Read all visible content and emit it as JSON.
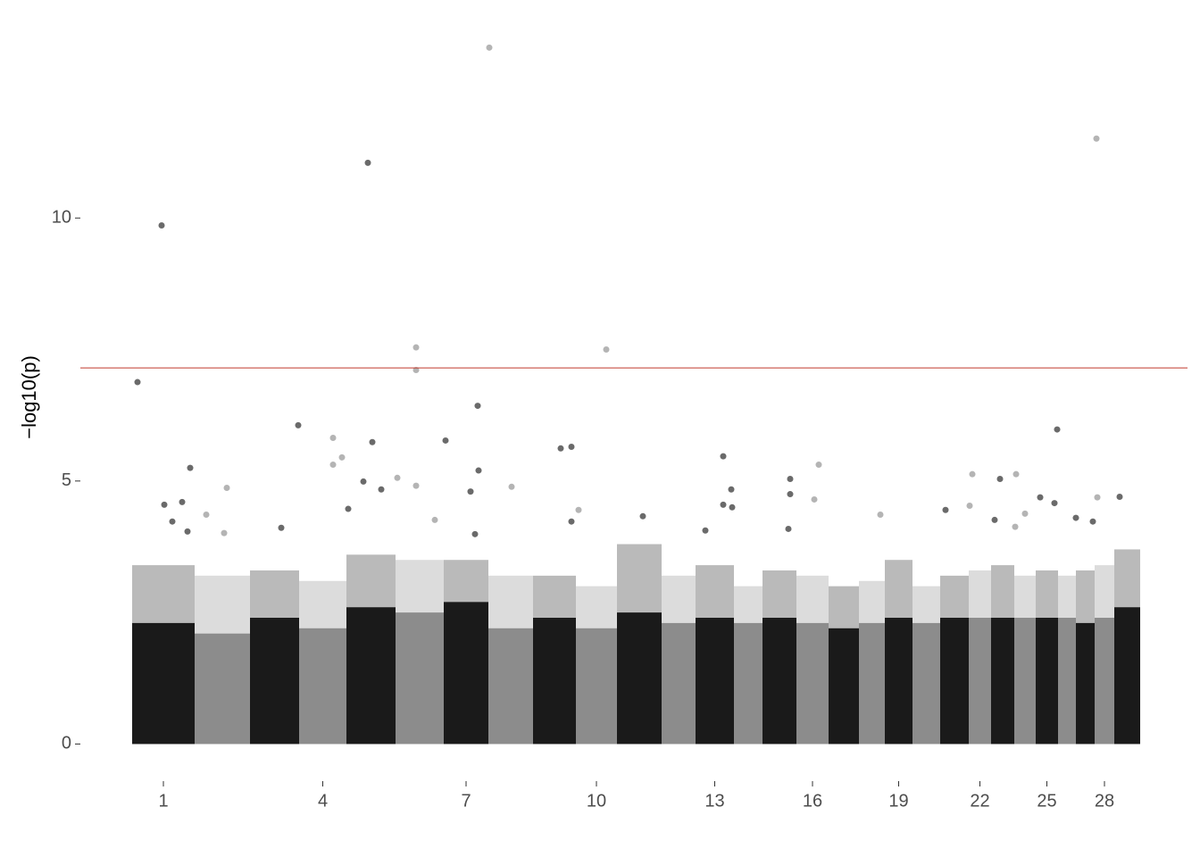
{
  "chart_data": {
    "type": "manhattan",
    "y_label": "−log10(p)",
    "categories": [
      "1",
      null,
      null,
      "4",
      null,
      null,
      "7",
      null,
      null,
      "10",
      null,
      null,
      "13",
      null,
      null,
      "16",
      null,
      null,
      "19",
      null,
      null,
      "22",
      null,
      null,
      "25",
      null,
      null,
      "28",
      null
    ],
    "x_bounds": [
      58,
      128,
      190,
      245,
      298,
      353,
      407,
      457,
      507,
      555,
      601,
      651,
      689,
      732,
      764,
      802,
      838,
      872,
      901,
      932,
      963,
      995,
      1020,
      1046,
      1070,
      1095,
      1115,
      1136,
      1158,
      1187
    ],
    "xlim": [
      0,
      1240
    ],
    "colors": [
      "#1a1a1a",
      "#8c8c8c"
    ],
    "bulk": [
      2.3,
      2.1,
      2.4,
      2.2,
      2.6,
      2.5,
      2.7,
      2.2,
      2.4,
      2.2,
      2.5,
      2.3,
      2.4,
      2.3,
      2.4,
      2.3,
      2.2,
      2.3,
      2.4,
      2.3,
      2.4,
      2.4,
      2.4,
      2.4,
      2.4,
      2.4,
      2.3,
      2.4,
      2.6
    ],
    "spread": [
      3.4,
      3.2,
      3.3,
      3.1,
      3.6,
      3.5,
      3.5,
      3.2,
      3.2,
      3.0,
      3.8,
      3.2,
      3.4,
      3.0,
      3.3,
      3.2,
      3.0,
      3.1,
      3.5,
      3.0,
      3.2,
      3.3,
      3.4,
      3.2,
      3.3,
      3.2,
      3.3,
      3.4,
      3.7
    ],
    "points": {
      "x": [
        64,
        91,
        458,
        322,
        1138,
        376,
        376,
        589,
        445,
        244,
        1094,
        283,
        327,
        409,
        538,
        550,
        720,
        293,
        123,
        827,
        446,
        283,
        999,
        1048,
        1030,
        795,
        355,
        317,
        164,
        337,
        376,
        483,
        729,
        437,
        795,
        1075,
        1139,
        1164,
        822,
        114,
        94,
        1091,
        720,
        996,
        969,
        558,
        300,
        730,
        1058,
        141,
        896,
        630,
        1024,
        550,
        1115,
        103,
        1134,
        397,
        225,
        1047,
        793,
        161,
        442,
        700,
        120
      ],
      "y": [
        6.88,
        9.86,
        13.24,
        11.05,
        11.51,
        7.54,
        7.11,
        7.5,
        6.43,
        6.06,
        5.98,
        5.82,
        5.74,
        5.77,
        5.62,
        5.65,
        5.47,
        5.45,
        5.25,
        5.31,
        5.2,
        5.31,
        5.13,
        5.13,
        5.04,
        5.04,
        5.06,
        4.99,
        4.87,
        4.84,
        4.91,
        4.89,
        4.84,
        4.8,
        4.75,
        4.69,
        4.69,
        4.7,
        4.65,
        4.6,
        4.55,
        4.58,
        4.55,
        4.53,
        4.45,
        4.45,
        4.47,
        4.5,
        4.38,
        4.36,
        4.36,
        4.33,
        4.26,
        4.23,
        4.3,
        4.23,
        4.23,
        4.26,
        4.11,
        4.13,
        4.09,
        4.01,
        3.99,
        4.06,
        4.04
      ]
    },
    "threshold": 7.15,
    "threshold_color": "#c0392b",
    "ylim": [
      -0.4,
      13.5
    ],
    "yticks": [
      0,
      5,
      10
    ]
  }
}
